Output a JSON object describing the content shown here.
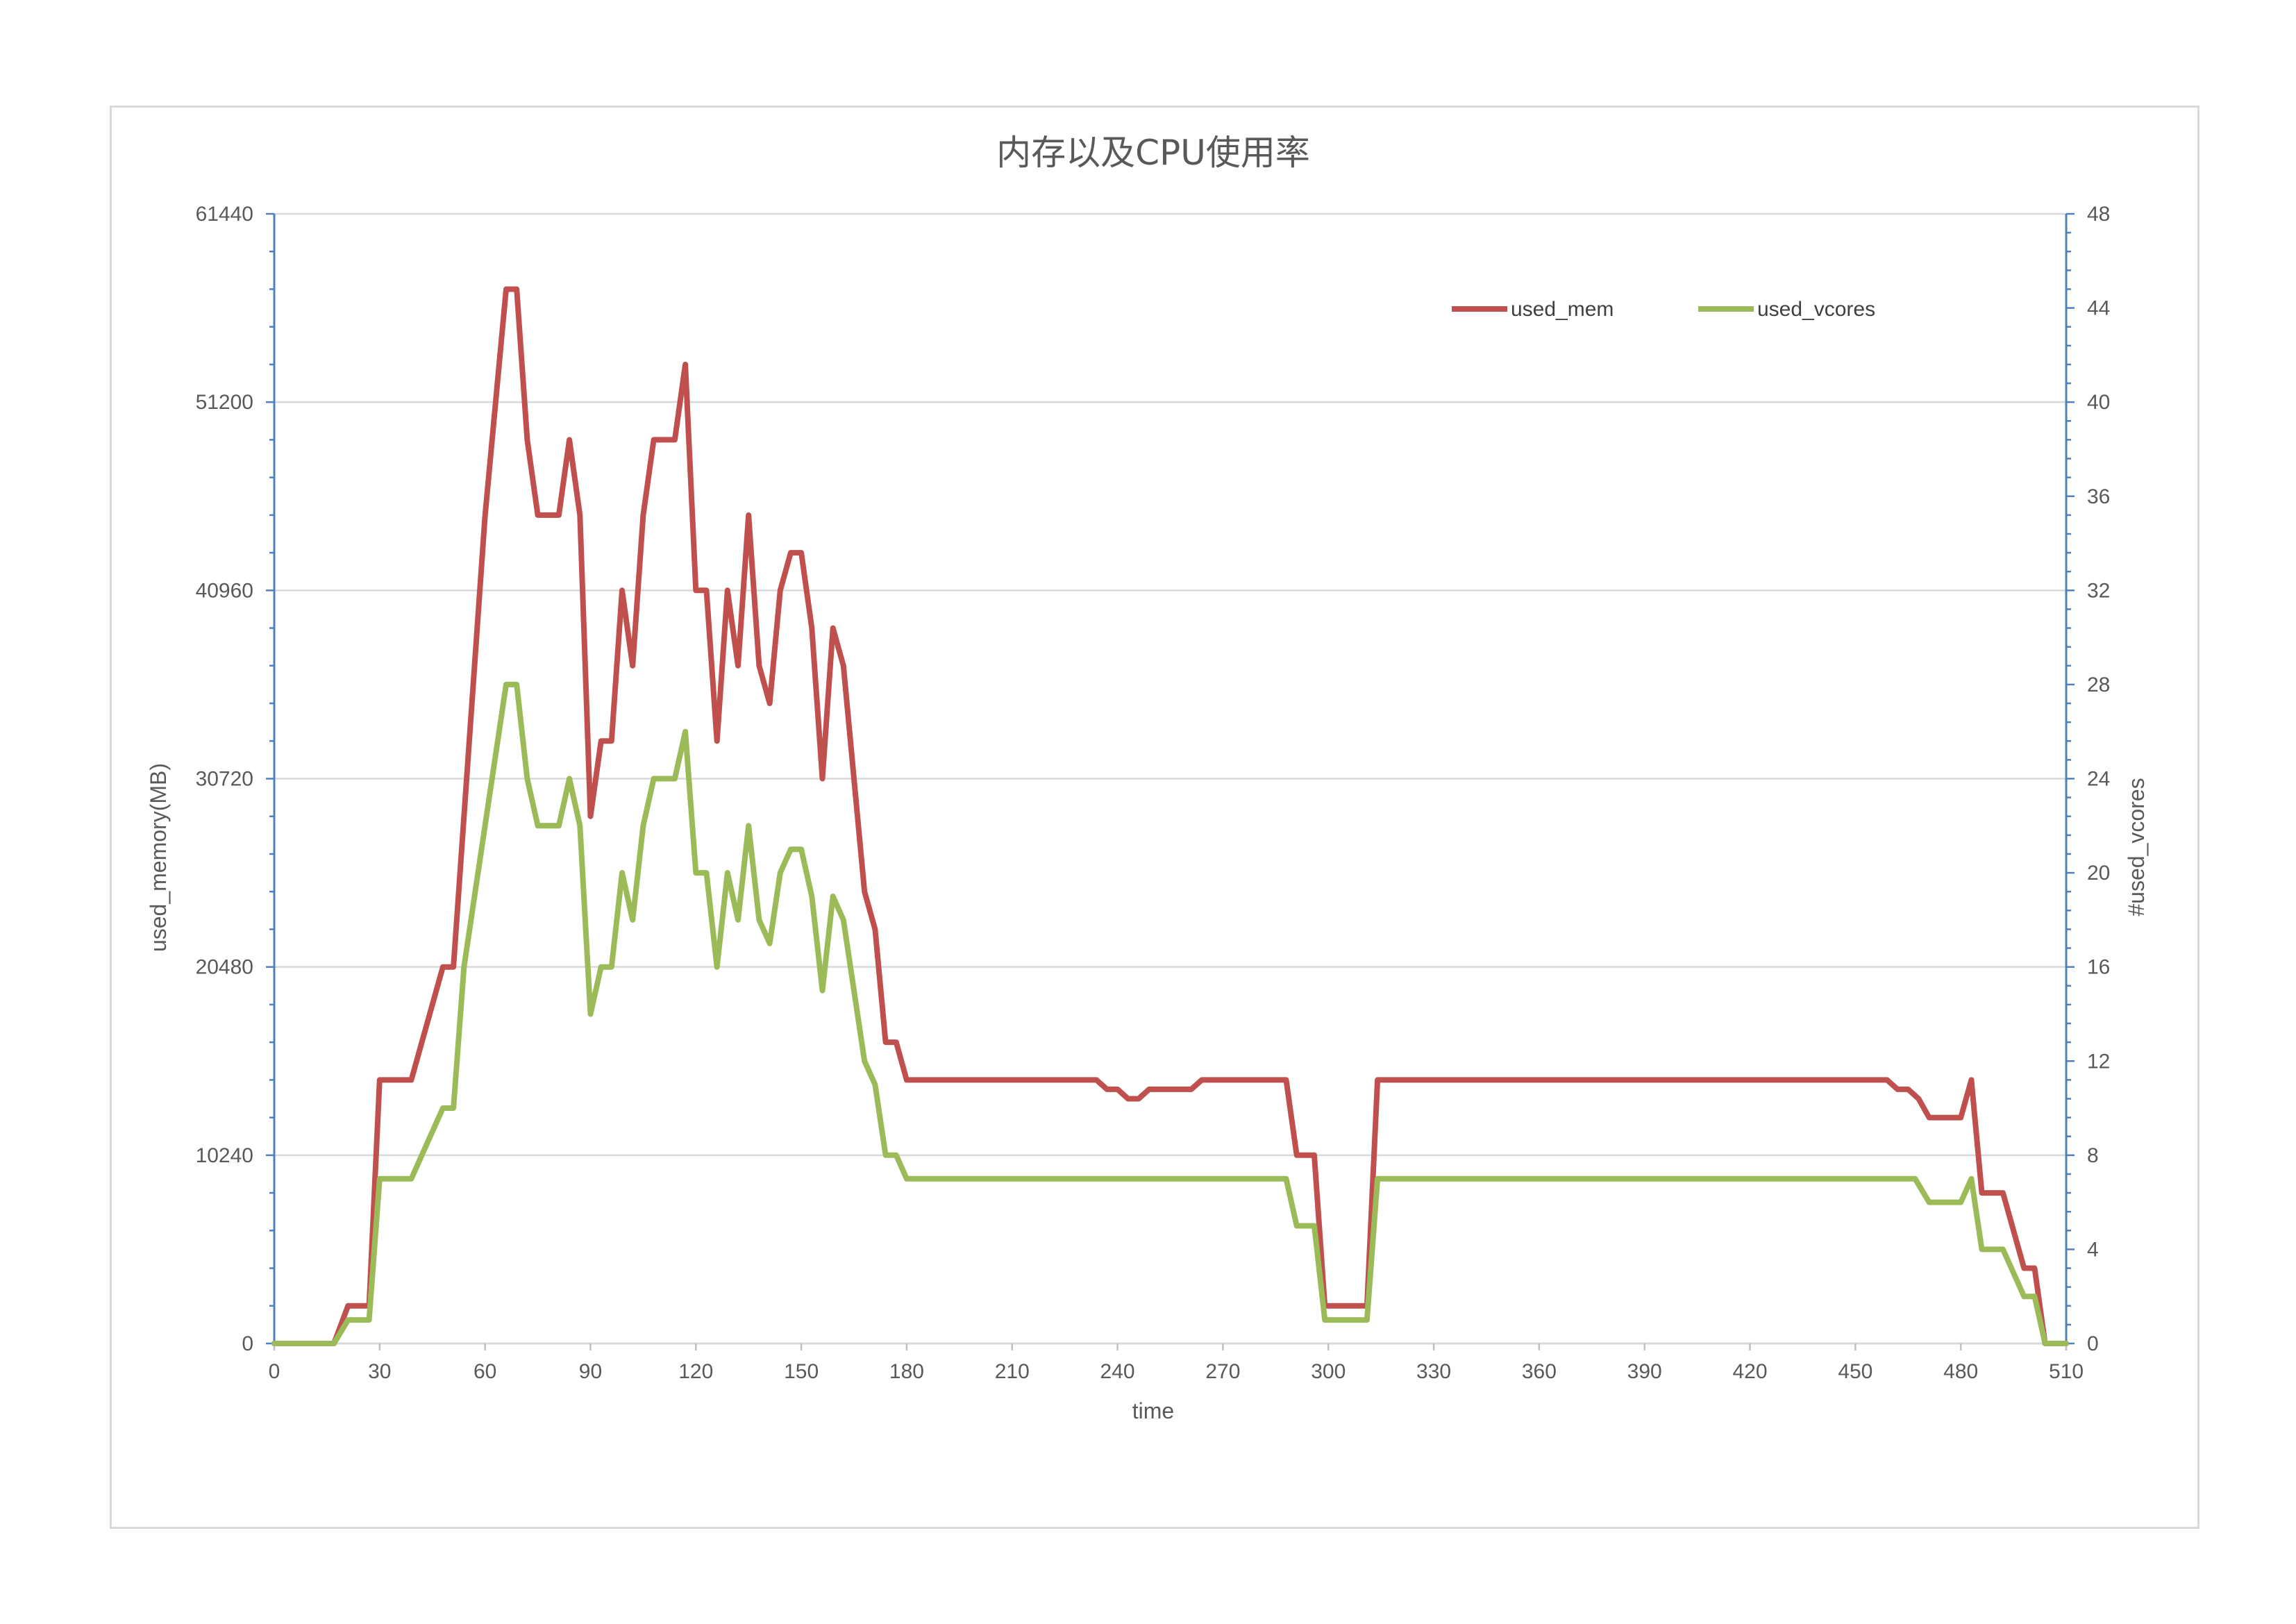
{
  "chart_data": {
    "type": "line",
    "title": "内存以及CPU使用率",
    "xlabel": "time",
    "ylabel": "used_memory(MB)",
    "y2label": "#used_vcores",
    "xlim": [
      0,
      510
    ],
    "ylim": [
      0,
      61440
    ],
    "y2lim": [
      0,
      48
    ],
    "xticks": [
      0,
      30,
      60,
      90,
      120,
      150,
      180,
      210,
      240,
      270,
      300,
      330,
      360,
      390,
      420,
      450,
      480,
      510
    ],
    "yticks": [
      0,
      10240,
      20480,
      30720,
      40960,
      51200,
      61440
    ],
    "y2ticks": [
      0,
      4,
      8,
      12,
      16,
      20,
      24,
      28,
      32,
      36,
      40,
      44,
      48
    ],
    "grid": "horizontal",
    "legend_position": "top-right",
    "series": [
      {
        "name": "used_mem",
        "axis": "left",
        "color": "#c0504d",
        "points": [
          [
            0,
            0
          ],
          [
            17,
            0
          ],
          [
            21,
            2048
          ],
          [
            27,
            2048
          ],
          [
            30,
            14336
          ],
          [
            39,
            14336
          ],
          [
            48,
            20480
          ],
          [
            51,
            20480
          ],
          [
            60,
            45000
          ],
          [
            66,
            57344
          ],
          [
            69,
            57344
          ],
          [
            72,
            49152
          ],
          [
            75,
            45056
          ],
          [
            81,
            45056
          ],
          [
            84,
            49152
          ],
          [
            87,
            45056
          ],
          [
            90,
            28672
          ],
          [
            93,
            32768
          ],
          [
            96,
            32768
          ],
          [
            99,
            40960
          ],
          [
            102,
            36864
          ],
          [
            105,
            45056
          ],
          [
            108,
            49152
          ],
          [
            114,
            49152
          ],
          [
            117,
            53248
          ],
          [
            120,
            40960
          ],
          [
            123,
            40960
          ],
          [
            126,
            32768
          ],
          [
            129,
            40960
          ],
          [
            132,
            36864
          ],
          [
            135,
            45056
          ],
          [
            138,
            36864
          ],
          [
            141,
            34816
          ],
          [
            144,
            40960
          ],
          [
            147,
            43008
          ],
          [
            150,
            43008
          ],
          [
            153,
            38912
          ],
          [
            156,
            30720
          ],
          [
            159,
            38912
          ],
          [
            162,
            36864
          ],
          [
            165,
            30720
          ],
          [
            168,
            24576
          ],
          [
            171,
            22528
          ],
          [
            174,
            16384
          ],
          [
            177,
            16384
          ],
          [
            180,
            14336
          ],
          [
            234,
            14336
          ],
          [
            237,
            13824
          ],
          [
            240,
            13824
          ],
          [
            243,
            13312
          ],
          [
            246,
            13312
          ],
          [
            249,
            13824
          ],
          [
            261,
            13824
          ],
          [
            264,
            14336
          ],
          [
            288,
            14336
          ],
          [
            291,
            10240
          ],
          [
            296,
            10240
          ],
          [
            299,
            2048
          ],
          [
            311,
            2048
          ],
          [
            314,
            14336
          ],
          [
            459,
            14336
          ],
          [
            462,
            13824
          ],
          [
            465,
            13824
          ],
          [
            468,
            13312
          ],
          [
            471,
            12288
          ],
          [
            474,
            12288
          ],
          [
            477,
            12288
          ],
          [
            480,
            12288
          ],
          [
            483,
            14336
          ],
          [
            486,
            8192
          ],
          [
            492,
            8192
          ],
          [
            498,
            4096
          ],
          [
            501,
            4096
          ],
          [
            504,
            0
          ],
          [
            510,
            0
          ]
        ]
      },
      {
        "name": "used_vcores",
        "axis": "right",
        "color": "#9bbb59",
        "points": [
          [
            0,
            0
          ],
          [
            17,
            0
          ],
          [
            21,
            1
          ],
          [
            27,
            1
          ],
          [
            30,
            7
          ],
          [
            39,
            7
          ],
          [
            48,
            10
          ],
          [
            51,
            10
          ],
          [
            54,
            16
          ],
          [
            60,
            22
          ],
          [
            66,
            28
          ],
          [
            69,
            28
          ],
          [
            72,
            24
          ],
          [
            75,
            22
          ],
          [
            81,
            22
          ],
          [
            84,
            24
          ],
          [
            87,
            22
          ],
          [
            90,
            14
          ],
          [
            93,
            16
          ],
          [
            96,
            16
          ],
          [
            99,
            20
          ],
          [
            102,
            18
          ],
          [
            105,
            22
          ],
          [
            108,
            24
          ],
          [
            114,
            24
          ],
          [
            117,
            26
          ],
          [
            120,
            20
          ],
          [
            123,
            20
          ],
          [
            126,
            16
          ],
          [
            129,
            20
          ],
          [
            132,
            18
          ],
          [
            135,
            22
          ],
          [
            138,
            18
          ],
          [
            141,
            17
          ],
          [
            144,
            20
          ],
          [
            147,
            21
          ],
          [
            150,
            21
          ],
          [
            153,
            19
          ],
          [
            156,
            15
          ],
          [
            159,
            19
          ],
          [
            162,
            18
          ],
          [
            165,
            15
          ],
          [
            168,
            12
          ],
          [
            171,
            11
          ],
          [
            174,
            8
          ],
          [
            177,
            8
          ],
          [
            180,
            7
          ],
          [
            288,
            7
          ],
          [
            291,
            5
          ],
          [
            296,
            5
          ],
          [
            299,
            1
          ],
          [
            311,
            1
          ],
          [
            314,
            7
          ],
          [
            467,
            7
          ],
          [
            471,
            6
          ],
          [
            480,
            6
          ],
          [
            483,
            7
          ],
          [
            486,
            4
          ],
          [
            492,
            4
          ],
          [
            498,
            2
          ],
          [
            501,
            2
          ],
          [
            504,
            0
          ],
          [
            510,
            0
          ]
        ]
      }
    ]
  }
}
